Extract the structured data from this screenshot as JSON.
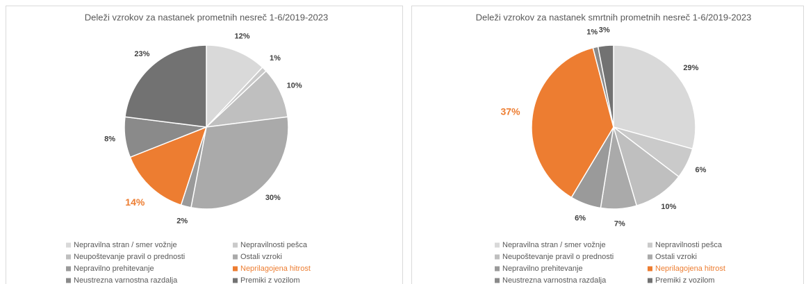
{
  "chart_data": [
    {
      "type": "pie",
      "title": "Deleži vzrokov za nastanek prometnih nesreč 1-6/2019-2023",
      "categories": [
        "Nepravilna stran / smer vožnje",
        "Nepravilnosti pešca",
        "Neupoštevanje pravil o prednosti",
        "Ostali vzroki",
        "Nepravilno prehitevanje",
        "Neprilagojena hitrost",
        "Neustrezna varnostna razdalja",
        "Premiki z vozilom"
      ],
      "values": [
        12,
        1,
        10,
        30,
        2,
        14,
        8,
        23
      ],
      "value_labels": [
        "12%",
        "1%",
        "10%",
        "30%",
        "2%",
        "14%",
        "8%",
        "23%"
      ],
      "colors": [
        "#d9d9d9",
        "#cacaca",
        "#bfbfbf",
        "#aaaaaa",
        "#9a9a9a",
        "#ed7d31",
        "#8a8a8a",
        "#727272"
      ],
      "legend": "bottom"
    },
    {
      "type": "pie",
      "title": "Deleži vzrokov za nastanek smrtnih prometnih nesreč 1-6/2019-2023",
      "categories": [
        "Nepravilna stran / smer vožnje",
        "Nepravilnosti pešca",
        "Neupoštevanje pravil o prednosti",
        "Ostali vzroki",
        "Nepravilno prehitevanje",
        "Neprilagojena hitrost",
        "Neustrezna varnostna razdalja",
        "Premiki z vozilom"
      ],
      "values": [
        29,
        6,
        10,
        7,
        6,
        37,
        1,
        3
      ],
      "value_labels": [
        "29%",
        "6%",
        "10%",
        "7%",
        "6%",
        "37%",
        "1%",
        "3%"
      ],
      "colors": [
        "#d9d9d9",
        "#cacaca",
        "#bfbfbf",
        "#aaaaaa",
        "#9a9a9a",
        "#ed7d31",
        "#8a8a8a",
        "#727272"
      ],
      "legend": "bottom"
    }
  ]
}
